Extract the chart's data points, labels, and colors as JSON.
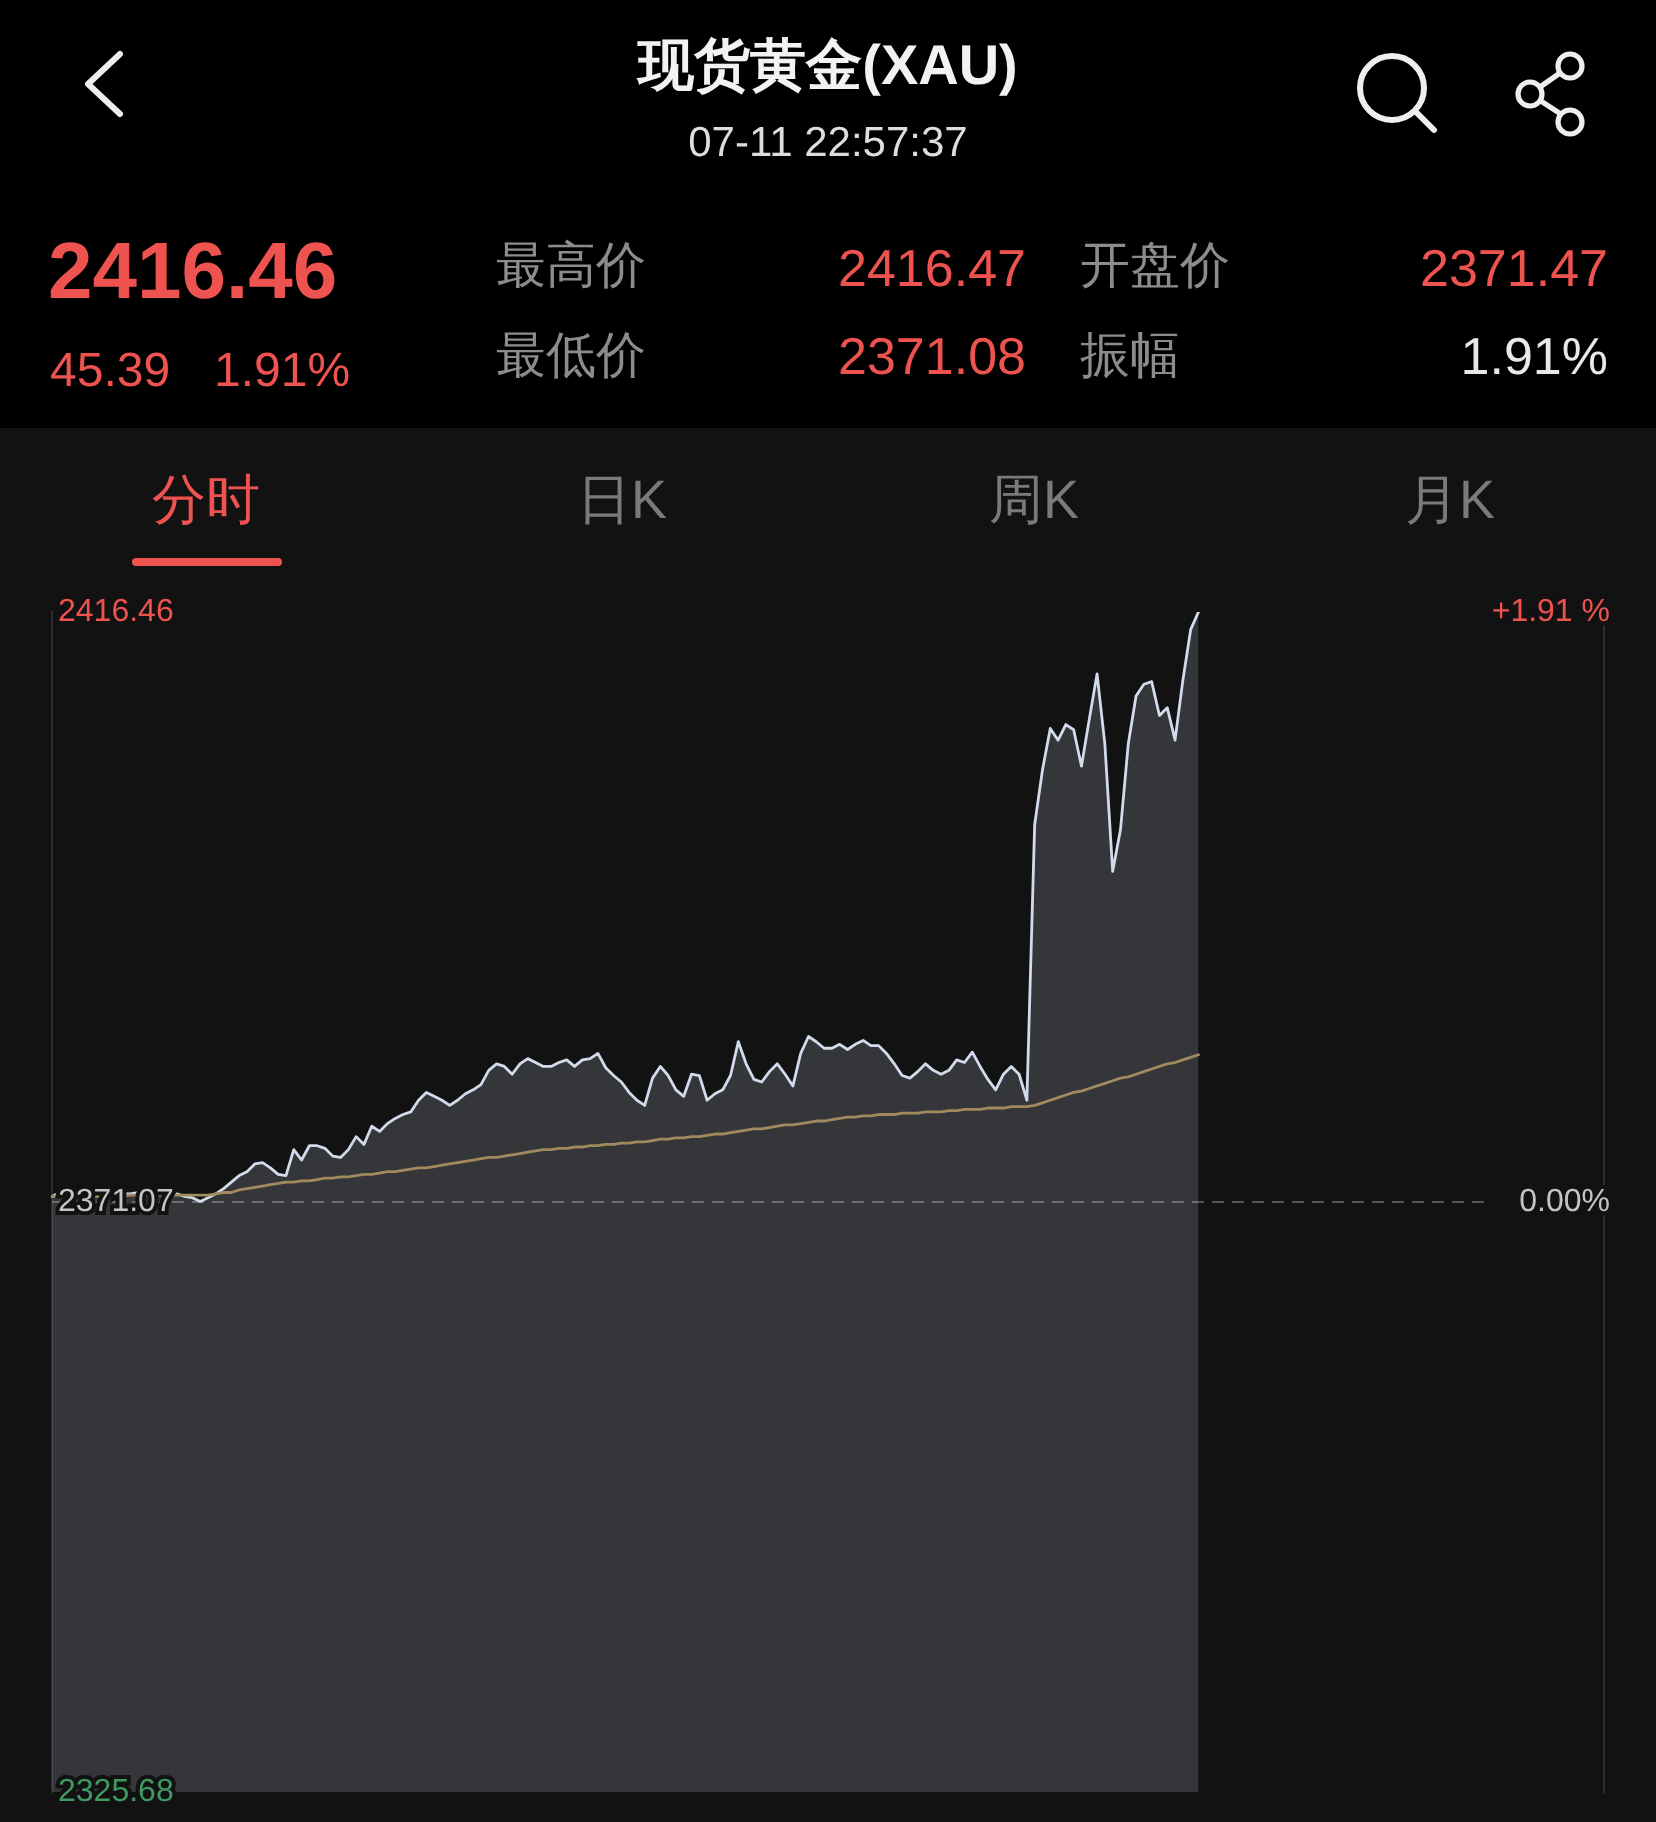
{
  "chart_data": {
    "type": "area",
    "title": "现货黄金(XAU)",
    "subtitle": "07-11 22:57:37",
    "annotations": [
      "2416.46",
      "45.39",
      "1.91%",
      "最高价",
      "2416.47",
      "最低价",
      "2371.08",
      "开盘价",
      "2371.47",
      "振幅",
      "1.91%",
      "分时",
      "日K",
      "周K",
      "月K"
    ],
    "categories": [
      null,
      null,
      null,
      null,
      null,
      null,
      null,
      null,
      null,
      null,
      null,
      null,
      null,
      null,
      null,
      null,
      null,
      null,
      null,
      null,
      null,
      null,
      null,
      null,
      null,
      null,
      null,
      null,
      null,
      null,
      null,
      null,
      null,
      null,
      null,
      null,
      null,
      null,
      null,
      null,
      null,
      null,
      null,
      null,
      null,
      null,
      null,
      null,
      null,
      null,
      null,
      null,
      null,
      null,
      null,
      null,
      null,
      null,
      null,
      null,
      null,
      null,
      null,
      null,
      null,
      null,
      null,
      null,
      null,
      null,
      null,
      null,
      null,
      null,
      null,
      null,
      null,
      null,
      null,
      null,
      null,
      null,
      null,
      null,
      null,
      null,
      null,
      null,
      null,
      null,
      null,
      null,
      null,
      null,
      null,
      null,
      null,
      null,
      null,
      null,
      null,
      null,
      null,
      null,
      null,
      null,
      null,
      null,
      null,
      null,
      null,
      null,
      null,
      null,
      null,
      null,
      null,
      null,
      null,
      null,
      null,
      null,
      null,
      null,
      null,
      null,
      null,
      null,
      null,
      null,
      null,
      null,
      null,
      null,
      null,
      null,
      null,
      null,
      null,
      null,
      null,
      null,
      null,
      null,
      null,
      null,
      null,
      null,
      null,
      null,
      null,
      null,
      null,
      null,
      null,
      null,
      null,
      null,
      null,
      null,
      null,
      null,
      null,
      null,
      null,
      null,
      null,
      null,
      null,
      null,
      null,
      null,
      null,
      null,
      null,
      null,
      null,
      null,
      null,
      null,
      null,
      null,
      null,
      null,
      null,
      null,
      null,
      null,
      null,
      null,
      null,
      null,
      null,
      null,
      null,
      null,
      null,
      null,
      null,
      null
    ],
    "series": [
      {
        "color": "#d2dbec",
        "values": [
          2371.5,
          2371.8,
          2371.8,
          2371.8,
          2371.7,
          2371.7,
          2371.8,
          2371.8,
          2371.8,
          2371.7,
          2371.7,
          2371.8,
          2371.8,
          2371.8,
          2371.7,
          2371.7,
          2371.7,
          2371.5,
          2371.4,
          2371.1,
          2371.4,
          2371.7,
          2372.1,
          2372.6,
          2373.1,
          2373.4,
          2374.0,
          2374.1,
          2373.7,
          2373.2,
          2373.1,
          2375.1,
          2374.3,
          2375.4,
          2375.4,
          2375.2,
          2374.6,
          2374.5,
          2375.1,
          2376.1,
          2375.5,
          2376.9,
          2376.5,
          2377.1,
          2377.5,
          2377.8,
          2378.0,
          2378.9,
          2379.5,
          2379.2,
          2378.9,
          2378.5,
          2378.9,
          2379.4,
          2379.7,
          2380.1,
          2381.2,
          2381.7,
          2381.5,
          2380.9,
          2381.7,
          2382.1,
          2381.8,
          2381.5,
          2381.5,
          2381.8,
          2382.0,
          2381.5,
          2382.0,
          2382.1,
          2382.5,
          2381.4,
          2380.8,
          2380.3,
          2379.5,
          2378.9,
          2378.5,
          2380.6,
          2381.5,
          2380.8,
          2379.7,
          2379.2,
          2380.9,
          2380.8,
          2378.9,
          2379.4,
          2379.7,
          2380.8,
          2383.4,
          2381.7,
          2380.5,
          2380.3,
          2381.1,
          2381.7,
          2380.9,
          2380.0,
          2382.5,
          2383.8,
          2383.4,
          2382.9,
          2382.9,
          2383.2,
          2382.8,
          2383.2,
          2383.5,
          2383.1,
          2383.1,
          2382.5,
          2381.7,
          2380.8,
          2380.6,
          2381.1,
          2381.7,
          2381.2,
          2380.9,
          2381.2,
          2382.0,
          2381.8,
          2382.6,
          2381.5,
          2380.5,
          2379.7,
          2380.9,
          2381.5,
          2380.9,
          2378.9,
          2400.1,
          2404.3,
          2407.5,
          2406.6,
          2407.8,
          2407.4,
          2404.6,
          2408.2,
          2411.7,
          2406.3,
          2396.5,
          2399.7,
          2406.3,
          2410.0,
          2410.9,
          2411.1,
          2408.5,
          2409.1,
          2406.6,
          2411.2,
          2415.1,
          2416.46,
          null,
          null,
          null,
          null,
          null,
          null,
          null,
          null,
          null,
          null,
          null,
          null,
          null,
          null,
          null,
          null,
          null,
          null,
          null,
          null,
          null,
          null,
          null,
          null,
          null,
          null,
          null,
          null,
          null,
          null,
          null,
          null,
          null,
          null,
          null,
          null,
          null,
          null,
          null,
          null,
          null,
          null,
          null,
          null,
          null,
          null,
          null,
          null,
          null,
          null,
          null,
          null
        ]
      },
      {
        "type": "line",
        "color": "#a08a5e",
        "values": [
          2371.5,
          2371.5,
          2371.5,
          2371.5,
          2371.5,
          2371.5,
          2371.5,
          2371.5,
          2371.5,
          2371.5,
          2371.6,
          2371.6,
          2371.6,
          2371.6,
          2371.6,
          2371.6,
          2371.6,
          2371.6,
          2371.6,
          2371.6,
          2371.6,
          2371.7,
          2371.8,
          2371.8,
          2372.0,
          2372.1,
          2372.2,
          2372.3,
          2372.4,
          2372.5,
          2372.6,
          2372.6,
          2372.7,
          2372.7,
          2372.8,
          2372.9,
          2372.9,
          2373.0,
          2373.0,
          2373.1,
          2373.2,
          2373.2,
          2373.3,
          2373.4,
          2373.4,
          2373.5,
          2373.6,
          2373.7,
          2373.7,
          2373.8,
          2373.9,
          2374.0,
          2374.1,
          2374.2,
          2374.3,
          2374.4,
          2374.5,
          2374.5,
          2374.6,
          2374.7,
          2374.8,
          2374.9,
          2375.0,
          2375.1,
          2375.1,
          2375.2,
          2375.2,
          2375.3,
          2375.3,
          2375.4,
          2375.4,
          2375.5,
          2375.5,
          2375.6,
          2375.6,
          2375.7,
          2375.7,
          2375.8,
          2375.9,
          2375.9,
          2376.0,
          2376.0,
          2376.1,
          2376.1,
          2376.2,
          2376.3,
          2376.3,
          2376.4,
          2376.5,
          2376.6,
          2376.7,
          2376.7,
          2376.8,
          2376.9,
          2377.0,
          2377.0,
          2377.1,
          2377.2,
          2377.3,
          2377.3,
          2377.4,
          2377.5,
          2377.6,
          2377.6,
          2377.7,
          2377.7,
          2377.8,
          2377.8,
          2377.8,
          2377.9,
          2377.9,
          2377.9,
          2378.0,
          2378.0,
          2378.0,
          2378.1,
          2378.1,
          2378.2,
          2378.2,
          2378.2,
          2378.3,
          2378.3,
          2378.3,
          2378.4,
          2378.4,
          2378.4,
          2378.5,
          2378.7,
          2378.9,
          2379.1,
          2379.3,
          2379.5,
          2379.6,
          2379.8,
          2380.0,
          2380.2,
          2380.4,
          2380.6,
          2380.7,
          2380.9,
          2381.1,
          2381.3,
          2381.5,
          2381.7,
          2381.8,
          2382.0,
          2382.2,
          2382.4,
          null,
          null,
          null,
          null,
          null,
          null,
          null,
          null,
          null,
          null,
          null,
          null,
          null,
          null,
          null,
          null,
          null,
          null,
          null,
          null,
          null,
          null,
          null,
          null,
          null,
          null,
          null,
          null,
          null,
          null,
          null,
          null,
          null,
          null,
          null,
          null,
          null,
          null,
          null,
          null,
          null,
          null,
          null,
          null,
          null,
          null,
          null,
          null,
          null,
          null,
          null,
          null
        ]
      }
    ],
    "ylim": [
      2325.68,
      2416.46
    ],
    "yticks": [
      2325.68,
      2371.07,
      2416.46
    ],
    "y2lim": [
      -1.91,
      1.91
    ],
    "y2ticks": [
      {
        "value": 1.91,
        "label": "+1.91 %"
      },
      {
        "value": 0,
        "label": "0.00%"
      }
    ],
    "ref_lines": [
      {
        "axis": "y",
        "value": 2371.07,
        "color": "#555555",
        "line_style": "dashed"
      }
    ]
  }
}
